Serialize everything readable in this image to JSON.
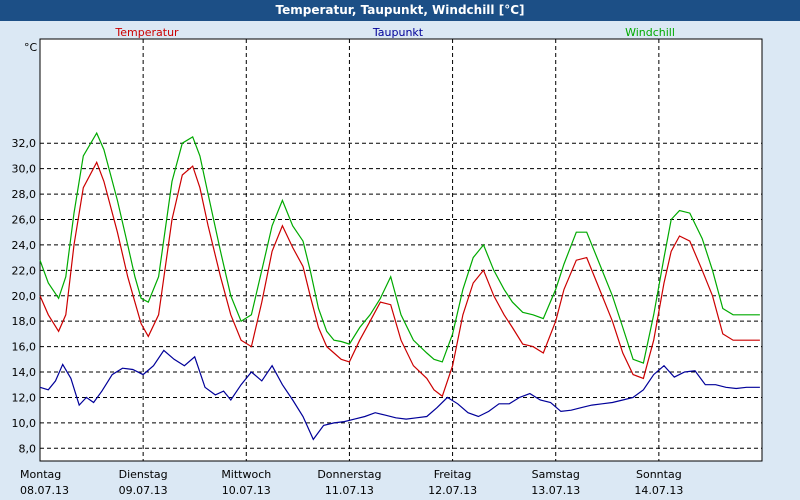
{
  "window": {
    "title": "Temperatur, Taupunkt, Windchill [°C]"
  },
  "chart_data": {
    "type": "line",
    "title": "Temperatur, Taupunkt, Windchill [°C]",
    "ylabel": "°C",
    "ylim": [
      7,
      40.2
    ],
    "yticks": [
      "8,0",
      "10,0",
      "12,0",
      "14,0",
      "16,0",
      "18,0",
      "20,0",
      "22,0",
      "24,0",
      "26,0",
      "28,0",
      "30,0",
      "32,0"
    ],
    "xlim": [
      0,
      7
    ],
    "grid": true,
    "days": [
      {
        "name": "Montag",
        "date": "08.07.13"
      },
      {
        "name": "Dienstag",
        "date": "09.07.13"
      },
      {
        "name": "Mittwoch",
        "date": "10.07.13"
      },
      {
        "name": "Donnerstag",
        "date": "11.07.13"
      },
      {
        "name": "Freitag",
        "date": "12.07.13"
      },
      {
        "name": "Samstag",
        "date": "13.07.13"
      },
      {
        "name": "Sonntag",
        "date": "14.07.13"
      }
    ],
    "series": [
      {
        "name": "Temperatur",
        "color": "#cc0000",
        "x": [
          0.0,
          0.08,
          0.18,
          0.25,
          0.33,
          0.42,
          0.55,
          0.62,
          0.75,
          0.85,
          0.92,
          0.98,
          1.05,
          1.15,
          1.28,
          1.38,
          1.48,
          1.55,
          1.63,
          1.75,
          1.85,
          1.95,
          2.05,
          2.15,
          2.25,
          2.35,
          2.45,
          2.55,
          2.62,
          2.7,
          2.78,
          2.85,
          2.92,
          3.0,
          3.1,
          3.2,
          3.3,
          3.4,
          3.5,
          3.62,
          3.75,
          3.82,
          3.9,
          4.0,
          4.1,
          4.2,
          4.3,
          4.4,
          4.5,
          4.58,
          4.68,
          4.78,
          4.88,
          5.0,
          5.08,
          5.2,
          5.3,
          5.4,
          5.55,
          5.65,
          5.75,
          5.85,
          5.95,
          6.05,
          6.12,
          6.2,
          6.3,
          6.42,
          6.52,
          6.62,
          6.72,
          6.82,
          6.92,
          6.98
        ],
        "values": [
          20.0,
          18.5,
          17.2,
          18.5,
          24.0,
          28.5,
          30.5,
          29.0,
          25.0,
          21.5,
          19.5,
          17.8,
          16.8,
          18.5,
          26.0,
          29.5,
          30.2,
          28.5,
          25.5,
          21.5,
          18.5,
          16.5,
          16.0,
          19.5,
          23.5,
          25.5,
          23.8,
          22.3,
          20.0,
          17.5,
          16.0,
          15.5,
          15.0,
          14.8,
          16.5,
          18.0,
          19.5,
          19.3,
          16.5,
          14.5,
          13.5,
          12.6,
          12.1,
          14.5,
          18.5,
          21.0,
          22.0,
          20.0,
          18.5,
          17.5,
          16.2,
          16.0,
          15.5,
          18.0,
          20.5,
          22.8,
          23.0,
          21.0,
          18.0,
          15.5,
          13.8,
          13.5,
          16.5,
          21.0,
          23.5,
          24.7,
          24.3,
          22.0,
          20.0,
          17.0,
          16.5,
          16.5,
          16.5,
          16.5
        ]
      },
      {
        "name": "Taupunkt",
        "color": "#000099",
        "x": [
          0.0,
          0.08,
          0.15,
          0.22,
          0.3,
          0.38,
          0.45,
          0.52,
          0.6,
          0.7,
          0.8,
          0.9,
          1.0,
          1.1,
          1.2,
          1.3,
          1.4,
          1.5,
          1.6,
          1.7,
          1.78,
          1.85,
          1.95,
          2.05,
          2.15,
          2.25,
          2.35,
          2.45,
          2.55,
          2.65,
          2.75,
          2.85,
          2.95,
          3.05,
          3.15,
          3.25,
          3.35,
          3.45,
          3.55,
          3.65,
          3.75,
          3.85,
          3.95,
          4.05,
          4.15,
          4.25,
          4.35,
          4.45,
          4.55,
          4.65,
          4.75,
          4.85,
          4.95,
          5.05,
          5.15,
          5.25,
          5.35,
          5.45,
          5.55,
          5.65,
          5.75,
          5.85,
          5.95,
          6.05,
          6.15,
          6.25,
          6.35,
          6.45,
          6.55,
          6.65,
          6.75,
          6.85,
          6.95,
          6.98
        ],
        "values": [
          12.8,
          12.6,
          13.3,
          14.6,
          13.5,
          11.4,
          12.0,
          11.6,
          12.5,
          13.8,
          14.3,
          14.2,
          13.8,
          14.5,
          15.7,
          15.0,
          14.5,
          15.2,
          12.8,
          12.2,
          12.5,
          11.8,
          13.0,
          14.0,
          13.3,
          14.5,
          13.0,
          11.8,
          10.5,
          8.7,
          9.8,
          10.0,
          10.1,
          10.3,
          10.5,
          10.8,
          10.6,
          10.4,
          10.3,
          10.4,
          10.5,
          11.2,
          12.0,
          11.5,
          10.8,
          10.5,
          10.9,
          11.5,
          11.5,
          12.0,
          12.3,
          11.8,
          11.6,
          10.9,
          11.0,
          11.2,
          11.4,
          11.5,
          11.6,
          11.8,
          12.0,
          12.6,
          13.8,
          14.5,
          13.6,
          14.0,
          14.1,
          13.0,
          13.0,
          12.8,
          12.7,
          12.8,
          12.8,
          12.8
        ]
      },
      {
        "name": "Windchill",
        "color": "#00aa00",
        "x": [
          0.0,
          0.08,
          0.18,
          0.25,
          0.33,
          0.42,
          0.55,
          0.62,
          0.75,
          0.85,
          0.92,
          0.98,
          1.05,
          1.15,
          1.28,
          1.38,
          1.48,
          1.55,
          1.63,
          1.75,
          1.85,
          1.95,
          2.05,
          2.15,
          2.25,
          2.35,
          2.45,
          2.55,
          2.62,
          2.7,
          2.78,
          2.85,
          2.92,
          3.0,
          3.1,
          3.2,
          3.3,
          3.4,
          3.5,
          3.62,
          3.75,
          3.82,
          3.9,
          4.0,
          4.1,
          4.2,
          4.3,
          4.4,
          4.5,
          4.58,
          4.68,
          4.78,
          4.88,
          5.0,
          5.08,
          5.2,
          5.3,
          5.4,
          5.55,
          5.65,
          5.75,
          5.85,
          5.95,
          6.05,
          6.12,
          6.2,
          6.3,
          6.42,
          6.52,
          6.62,
          6.72,
          6.82,
          6.92,
          6.98
        ],
        "values": [
          22.8,
          21.0,
          19.8,
          21.5,
          26.5,
          31.0,
          32.8,
          31.5,
          27.5,
          24.0,
          21.5,
          19.8,
          19.5,
          21.5,
          29.0,
          32.0,
          32.5,
          31.0,
          28.0,
          23.5,
          20.0,
          18.0,
          18.5,
          22.0,
          25.5,
          27.5,
          25.5,
          24.3,
          22.0,
          19.0,
          17.2,
          16.5,
          16.4,
          16.2,
          17.5,
          18.5,
          19.8,
          21.5,
          18.5,
          16.5,
          15.5,
          15.0,
          14.8,
          17.0,
          20.5,
          23.0,
          24.0,
          22.0,
          20.5,
          19.5,
          18.7,
          18.5,
          18.2,
          20.5,
          22.5,
          25.0,
          25.0,
          23.0,
          20.0,
          17.5,
          15.0,
          14.7,
          18.5,
          23.0,
          26.0,
          26.7,
          26.5,
          24.5,
          22.0,
          19.0,
          18.5,
          18.5,
          18.5,
          18.5
        ]
      }
    ]
  }
}
